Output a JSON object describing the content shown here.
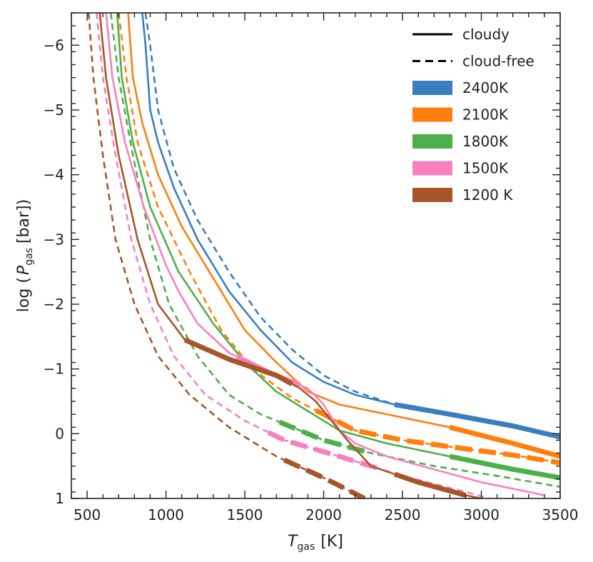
{
  "chart_data": {
    "type": "line",
    "xlabel": {
      "main": "T",
      "sub": "gas",
      "unit": "[K]"
    },
    "ylabel": {
      "pre": "log (",
      "main": "P",
      "sub": "gas",
      "unit": "[bar])"
    },
    "xlim": [
      400,
      3500
    ],
    "ylim": [
      1,
      -6.5
    ],
    "y_inverted": true,
    "x_ticks": [
      500,
      1000,
      1500,
      2000,
      2500,
      3000,
      3500
    ],
    "x_tick_labels": [
      "500",
      "1000",
      "1500",
      "2000",
      "2500",
      "3000",
      "3500"
    ],
    "x_minor_step": 100,
    "y_ticks": [
      -6,
      -5,
      -4,
      -3,
      -2,
      -1,
      0,
      1
    ],
    "y_tick_labels": [
      "−6",
      "−5",
      "−4",
      "−3",
      "−2",
      "−1",
      "0",
      "1"
    ],
    "y_minor_step": 0.2,
    "legend": {
      "placement": "top-right",
      "style_entries": [
        {
          "label": "cloudy",
          "style": "solid"
        },
        {
          "label": "cloud-free",
          "style": "dashed"
        }
      ],
      "color_entries": [
        {
          "label": "2400K",
          "color": "#3a7ebf"
        },
        {
          "label": "2100K",
          "color": "#ff7f0e"
        },
        {
          "label": "1800K",
          "color": "#4daf4a"
        },
        {
          "label": "1500K",
          "color": "#f781bf"
        },
        {
          "label": "1200 K",
          "color": "#a65628"
        }
      ]
    },
    "series": [
      {
        "name": "2400K cloudy",
        "color": "#3a7ebf",
        "style": "solid",
        "points": [
          [
            850,
            -6.5
          ],
          [
            870,
            -6.0
          ],
          [
            900,
            -5.0
          ],
          [
            950,
            -4.5
          ],
          [
            1050,
            -3.8
          ],
          [
            1200,
            -3.0
          ],
          [
            1400,
            -2.2
          ],
          [
            1600,
            -1.6
          ],
          [
            1800,
            -1.1
          ],
          [
            2000,
            -0.8
          ],
          [
            2200,
            -0.6
          ],
          [
            2450,
            -0.45
          ],
          [
            2800,
            -0.3
          ],
          [
            3200,
            -0.12
          ],
          [
            3500,
            0.05
          ]
        ],
        "thick_ranges": [
          [
            2450,
            3500
          ]
        ]
      },
      {
        "name": "2400K cloud-free",
        "color": "#3a7ebf",
        "style": "dashed",
        "points": [
          [
            870,
            -6.5
          ],
          [
            900,
            -6.0
          ],
          [
            950,
            -5.0
          ],
          [
            1050,
            -4.1
          ],
          [
            1200,
            -3.3
          ],
          [
            1400,
            -2.5
          ],
          [
            1600,
            -1.8
          ],
          [
            1800,
            -1.3
          ],
          [
            2000,
            -0.9
          ],
          [
            2200,
            -0.65
          ],
          [
            2450,
            -0.45
          ],
          [
            2800,
            -0.3
          ],
          [
            3200,
            -0.12
          ],
          [
            3500,
            0.05
          ]
        ],
        "thick_ranges": []
      },
      {
        "name": "2100K cloudy",
        "color": "#ff7f0e",
        "style": "solid",
        "points": [
          [
            760,
            -6.5
          ],
          [
            790,
            -5.5
          ],
          [
            850,
            -4.8
          ],
          [
            950,
            -4.0
          ],
          [
            1100,
            -3.2
          ],
          [
            1300,
            -2.4
          ],
          [
            1500,
            -1.6
          ],
          [
            1700,
            -1.1
          ],
          [
            1900,
            -0.65
          ],
          [
            2100,
            -0.45
          ],
          [
            2400,
            -0.3
          ],
          [
            2800,
            -0.1
          ],
          [
            3200,
            0.15
          ],
          [
            3500,
            0.35
          ]
        ],
        "thick_ranges": [
          [
            2800,
            3500
          ]
        ]
      },
      {
        "name": "2100K cloud-free",
        "color": "#ff7f0e",
        "style": "dashed",
        "points": [
          [
            700,
            -6.5
          ],
          [
            750,
            -5.5
          ],
          [
            820,
            -4.5
          ],
          [
            950,
            -3.5
          ],
          [
            1150,
            -2.5
          ],
          [
            1350,
            -1.6
          ],
          [
            1550,
            -1.0
          ],
          [
            1800,
            -0.55
          ],
          [
            2000,
            -0.3
          ],
          [
            2200,
            -0.05
          ],
          [
            2500,
            0.1
          ],
          [
            2800,
            0.2
          ],
          [
            3200,
            0.33
          ],
          [
            3500,
            0.45
          ]
        ],
        "thick_ranges": [
          [
            1950,
            3500
          ]
        ]
      },
      {
        "name": "1800K cloudy",
        "color": "#4daf4a",
        "style": "solid",
        "points": [
          [
            690,
            -6.5
          ],
          [
            720,
            -5.5
          ],
          [
            790,
            -4.5
          ],
          [
            900,
            -3.5
          ],
          [
            1080,
            -2.5
          ],
          [
            1300,
            -1.7
          ],
          [
            1500,
            -1.1
          ],
          [
            1700,
            -0.65
          ],
          [
            1900,
            -0.35
          ],
          [
            2100,
            -0.05
          ],
          [
            2400,
            0.15
          ],
          [
            2800,
            0.35
          ],
          [
            3200,
            0.55
          ],
          [
            3500,
            0.68
          ]
        ],
        "thick_ranges": [
          [
            2800,
            3500
          ]
        ]
      },
      {
        "name": "1800K cloud-free",
        "color": "#4daf4a",
        "style": "dashed",
        "points": [
          [
            650,
            -6.5
          ],
          [
            700,
            -5.5
          ],
          [
            790,
            -4.3
          ],
          [
            900,
            -3.0
          ],
          [
            1020,
            -2.0
          ],
          [
            1200,
            -1.2
          ],
          [
            1400,
            -0.6
          ],
          [
            1600,
            -0.3
          ],
          [
            1800,
            -0.1
          ],
          [
            2000,
            0.1
          ],
          [
            2300,
            0.3
          ],
          [
            2700,
            0.5
          ],
          [
            3100,
            0.65
          ],
          [
            3500,
            0.82
          ]
        ],
        "thick_ranges": [
          [
            1720,
            2300
          ]
        ]
      },
      {
        "name": "1500K cloudy",
        "color": "#f781bf",
        "style": "solid",
        "points": [
          [
            620,
            -6.5
          ],
          [
            660,
            -5.5
          ],
          [
            740,
            -4.5
          ],
          [
            860,
            -3.5
          ],
          [
            1000,
            -2.6
          ],
          [
            1080,
            -2.2
          ],
          [
            1200,
            -1.7
          ],
          [
            1400,
            -1.25
          ],
          [
            1650,
            -0.95
          ],
          [
            1900,
            -0.7
          ],
          [
            2000,
            -0.45
          ],
          [
            2100,
            -0.05
          ],
          [
            2200,
            0.15
          ],
          [
            2400,
            0.35
          ],
          [
            2700,
            0.55
          ],
          [
            3000,
            0.75
          ],
          [
            3400,
            0.95
          ]
        ],
        "thick_ranges": [
          [
            1450,
            1850
          ]
        ]
      },
      {
        "name": "1500K cloud-free",
        "color": "#f781bf",
        "style": "dashed",
        "points": [
          [
            560,
            -6.5
          ],
          [
            600,
            -5.5
          ],
          [
            680,
            -4.3
          ],
          [
            780,
            -3.0
          ],
          [
            900,
            -2.0
          ],
          [
            1050,
            -1.2
          ],
          [
            1250,
            -0.6
          ],
          [
            1500,
            -0.2
          ],
          [
            1750,
            0.1
          ],
          [
            2100,
            0.35
          ],
          [
            2500,
            0.65
          ],
          [
            2900,
            0.9
          ],
          [
            3050,
            1.0
          ]
        ],
        "thick_ranges": [
          [
            1650,
            2350
          ]
        ]
      },
      {
        "name": "1200 K cloudy",
        "color": "#a65628",
        "style": "solid",
        "points": [
          [
            580,
            -6.5
          ],
          [
            620,
            -5.5
          ],
          [
            700,
            -4.3
          ],
          [
            820,
            -3.0
          ],
          [
            950,
            -2.0
          ],
          [
            1120,
            -1.45
          ],
          [
            1400,
            -1.15
          ],
          [
            1700,
            -0.9
          ],
          [
            1850,
            -0.7
          ],
          [
            1950,
            -0.5
          ],
          [
            2050,
            -0.2
          ],
          [
            2150,
            0.1
          ],
          [
            2300,
            0.5
          ],
          [
            2600,
            0.75
          ],
          [
            2900,
            0.95
          ],
          [
            3000,
            1.0
          ]
        ],
        "thick_ranges": [
          [
            1120,
            1800
          ],
          [
            2450,
            2900
          ]
        ]
      },
      {
        "name": "1200 K cloud-free",
        "color": "#a65628",
        "style": "dashed",
        "points": [
          [
            510,
            -6.5
          ],
          [
            540,
            -5.5
          ],
          [
            600,
            -4.3
          ],
          [
            680,
            -3.0
          ],
          [
            800,
            -2.0
          ],
          [
            950,
            -1.2
          ],
          [
            1150,
            -0.6
          ],
          [
            1400,
            -0.1
          ],
          [
            1700,
            0.35
          ],
          [
            2000,
            0.68
          ],
          [
            2260,
            1.0
          ]
        ],
        "thick_ranges": [
          [
            1750,
            2260
          ]
        ]
      }
    ]
  }
}
